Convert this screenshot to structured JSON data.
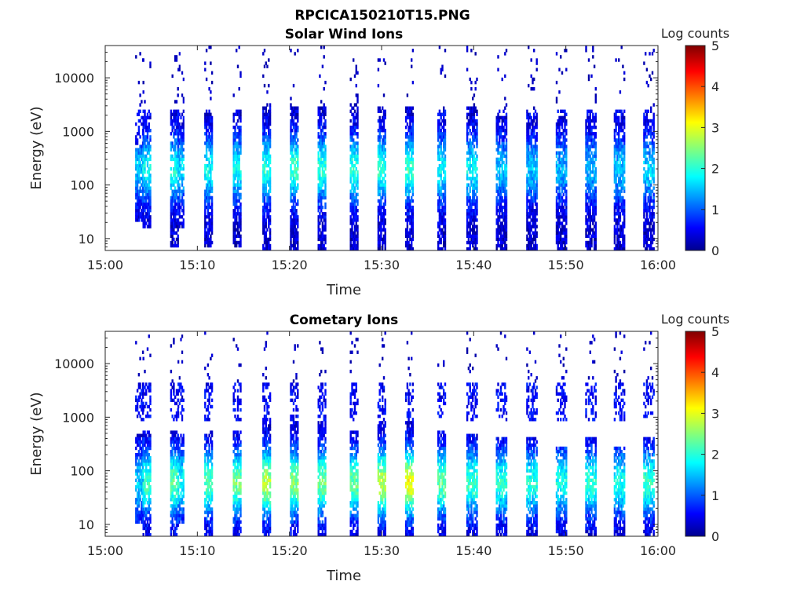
{
  "figure_title": "RPCICA150210T15.PNG",
  "chart_data": [
    {
      "type": "heatmap",
      "title": "Solar Wind Ions",
      "xlabel": "Time",
      "ylabel": "Energy (eV)",
      "x_tick_labels": [
        "15:00",
        "15:10",
        "15:20",
        "15:30",
        "15:40",
        "15:50",
        "16:00"
      ],
      "x_range_minutes": [
        0,
        60
      ],
      "y_tick_labels": [
        "10",
        "100",
        "1000",
        "10000"
      ],
      "y_ticks": [
        10,
        100,
        1000,
        10000
      ],
      "y_scale": "log",
      "y_range": [
        6,
        40000
      ],
      "colorbar": {
        "label": "Log counts",
        "ticks": [
          "0",
          "1",
          "2",
          "3",
          "4",
          "5"
        ],
        "range": [
          0,
          5
        ],
        "colormap": "jet"
      },
      "grid": false,
      "peak_energy_eV": 200,
      "high_energy_eV": 1200,
      "sweeps": [
        {
          "t": 3.7,
          "w": 0.9,
          "lo": 20,
          "hi": 600,
          "intensity": 1.2
        },
        {
          "t": 4.5,
          "w": 0.9,
          "lo": 15,
          "hi": 2000,
          "intensity": 1.5
        },
        {
          "t": 7.5,
          "w": 0.9,
          "lo": 7,
          "hi": 2500,
          "intensity": 1.6
        },
        {
          "t": 8.2,
          "w": 0.7,
          "lo": 15,
          "hi": 1500,
          "intensity": 1.3
        },
        {
          "t": 11.2,
          "w": 0.9,
          "lo": 7,
          "hi": 2500,
          "intensity": 1.5
        },
        {
          "t": 14.3,
          "w": 0.9,
          "lo": 7,
          "hi": 2500,
          "intensity": 1.5
        },
        {
          "t": 17.5,
          "w": 0.9,
          "lo": 6,
          "hi": 3000,
          "intensity": 1.7
        },
        {
          "t": 20.5,
          "w": 0.9,
          "lo": 6,
          "hi": 3000,
          "intensity": 1.8
        },
        {
          "t": 23.5,
          "w": 0.9,
          "lo": 6,
          "hi": 3000,
          "intensity": 1.7
        },
        {
          "t": 27.0,
          "w": 0.9,
          "lo": 6,
          "hi": 3000,
          "intensity": 1.7
        },
        {
          "t": 30.0,
          "w": 0.9,
          "lo": 6,
          "hi": 3000,
          "intensity": 1.7
        },
        {
          "t": 33.0,
          "w": 0.9,
          "lo": 6,
          "hi": 3000,
          "intensity": 1.8
        },
        {
          "t": 36.5,
          "w": 0.9,
          "lo": 6,
          "hi": 2000,
          "intensity": 1.5
        },
        {
          "t": 39.8,
          "w": 1.2,
          "lo": 6,
          "hi": 3000,
          "intensity": 1.5
        },
        {
          "t": 43.0,
          "w": 1.2,
          "lo": 6,
          "hi": 2000,
          "intensity": 1.2
        },
        {
          "t": 46.3,
          "w": 1.2,
          "lo": 6,
          "hi": 2000,
          "intensity": 1.2
        },
        {
          "t": 49.5,
          "w": 1.2,
          "lo": 6,
          "hi": 2000,
          "intensity": 1.1
        },
        {
          "t": 52.7,
          "w": 1.2,
          "lo": 6,
          "hi": 2000,
          "intensity": 1.1
        },
        {
          "t": 55.8,
          "w": 1.2,
          "lo": 6,
          "hi": 2000,
          "intensity": 1.2
        },
        {
          "t": 59.0,
          "w": 1.2,
          "lo": 6,
          "hi": 2000,
          "intensity": 1.3
        }
      ]
    },
    {
      "type": "heatmap",
      "title": "Cometary Ions",
      "xlabel": "Time",
      "ylabel": "Energy (eV)",
      "x_tick_labels": [
        "15:00",
        "15:10",
        "15:20",
        "15:30",
        "15:40",
        "15:50",
        "16:00"
      ],
      "x_range_minutes": [
        0,
        60
      ],
      "y_tick_labels": [
        "10",
        "100",
        "1000",
        "10000"
      ],
      "y_ticks": [
        10,
        100,
        1000,
        10000
      ],
      "y_scale": "log",
      "y_range": [
        6,
        40000
      ],
      "colorbar": {
        "label": "Log counts",
        "ticks": [
          "0",
          "1",
          "2",
          "3",
          "4",
          "5"
        ],
        "range": [
          0,
          5
        ],
        "colormap": "jet"
      },
      "grid": false,
      "peak_energy_eV": 60,
      "high_energy_eV": 2000,
      "sweeps": [
        {
          "t": 3.7,
          "w": 0.9,
          "lo": 10,
          "hi": 500,
          "intensity": 1.3
        },
        {
          "t": 4.5,
          "w": 0.9,
          "lo": 6,
          "hi": 600,
          "intensity": 1.8
        },
        {
          "t": 7.5,
          "w": 0.9,
          "lo": 6,
          "hi": 600,
          "intensity": 2.0
        },
        {
          "t": 8.2,
          "w": 0.7,
          "lo": 10,
          "hi": 500,
          "intensity": 1.6
        },
        {
          "t": 11.2,
          "w": 0.9,
          "lo": 6,
          "hi": 600,
          "intensity": 1.9
        },
        {
          "t": 14.3,
          "w": 0.9,
          "lo": 6,
          "hi": 600,
          "intensity": 2.1
        },
        {
          "t": 17.5,
          "w": 0.9,
          "lo": 6,
          "hi": 800,
          "intensity": 2.4
        },
        {
          "t": 20.5,
          "w": 0.9,
          "lo": 6,
          "hi": 800,
          "intensity": 2.2
        },
        {
          "t": 23.5,
          "w": 0.9,
          "lo": 6,
          "hi": 800,
          "intensity": 2.1
        },
        {
          "t": 27.0,
          "w": 0.9,
          "lo": 6,
          "hi": 600,
          "intensity": 2.0
        },
        {
          "t": 30.0,
          "w": 0.9,
          "lo": 6,
          "hi": 800,
          "intensity": 2.5
        },
        {
          "t": 33.0,
          "w": 0.9,
          "lo": 6,
          "hi": 800,
          "intensity": 2.8
        },
        {
          "t": 36.5,
          "w": 0.9,
          "lo": 6,
          "hi": 600,
          "intensity": 2.0
        },
        {
          "t": 39.8,
          "w": 1.2,
          "lo": 6,
          "hi": 500,
          "intensity": 1.8
        },
        {
          "t": 43.0,
          "w": 1.2,
          "lo": 6,
          "hi": 400,
          "intensity": 1.7
        },
        {
          "t": 46.3,
          "w": 1.2,
          "lo": 6,
          "hi": 400,
          "intensity": 1.7
        },
        {
          "t": 49.5,
          "w": 1.2,
          "lo": 6,
          "hi": 300,
          "intensity": 1.6
        },
        {
          "t": 52.7,
          "w": 1.2,
          "lo": 6,
          "hi": 400,
          "intensity": 1.7
        },
        {
          "t": 55.8,
          "w": 1.2,
          "lo": 6,
          "hi": 300,
          "intensity": 1.6
        },
        {
          "t": 59.0,
          "w": 1.2,
          "lo": 6,
          "hi": 400,
          "intensity": 1.8
        }
      ]
    }
  ]
}
